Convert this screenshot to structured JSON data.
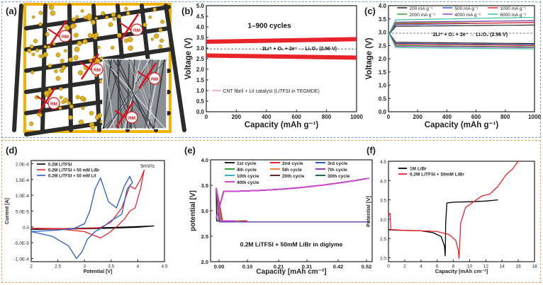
{
  "colors": {
    "top_frame": "#7f9bd0",
    "bottom_frame": "#f0a050",
    "panel_a_frame": "#f2b200"
  },
  "panel_labels": [
    "(a)",
    "(b)",
    "(c)",
    "(d)",
    "(e)",
    "(f)"
  ],
  "panel_a": {
    "inset_labels": [
      "RM",
      "RM",
      "RM",
      "RM",
      "RM",
      "RM"
    ]
  },
  "chart_data": [
    {
      "id": "b",
      "type": "line",
      "xlabel": "Capacity (mAh g⁻¹)",
      "ylabel": "Voltage (V)",
      "xlim": [
        0,
        1000
      ],
      "ylim": [
        0,
        5
      ],
      "xticks": [
        0,
        200,
        400,
        600,
        800,
        1000
      ],
      "yticks": [
        0.0,
        0.5,
        1.0,
        1.5,
        2.0,
        2.5,
        3.0,
        3.5,
        4.0,
        4.5,
        5.0
      ],
      "annotation": "1–900 cycles",
      "reaction": "2Li⁺ + O₂ + 2e⁻ → Li₂O₂ (2.96 V)",
      "equilibrium_v": 2.96,
      "legend": "CNT fibril + LiI catalyst (LiTFSI in TEGMDE)",
      "series": [
        {
          "name": "charge",
          "color": "#e8232a",
          "x": [
            0,
            1000
          ],
          "y": [
            3.3,
            3.42
          ]
        },
        {
          "name": "discharge",
          "color": "#e8232a",
          "x": [
            0,
            1000
          ],
          "y": [
            2.65,
            2.55
          ]
        }
      ]
    },
    {
      "id": "c",
      "type": "line",
      "xlabel": "Capacity (mAh g⁻¹)",
      "ylabel": "Voltage (V)",
      "xlim": [
        0,
        1000
      ],
      "ylim": [
        0,
        4
      ],
      "xticks": [
        0,
        200,
        400,
        600,
        800,
        1000
      ],
      "yticks": [
        0.0,
        0.5,
        1.0,
        1.5,
        2.0,
        2.5,
        3.0,
        3.5,
        4.0
      ],
      "reaction": "2Li⁺ + O₂ + 2e⁻ → Li₂O₂ (2.96 V)",
      "equilibrium_v": 2.96,
      "series": [
        {
          "name": "200 mA g⁻¹",
          "color": "#222222",
          "charge": 3.22,
          "discharge": 2.62
        },
        {
          "name": "500 mA g⁻¹",
          "color": "#2f5fbf",
          "charge": 3.27,
          "discharge": 2.58
        },
        {
          "name": "1000 mA g⁻¹",
          "color": "#e8232a",
          "charge": 3.31,
          "discharge": 2.55
        },
        {
          "name": "2000 mA g⁻¹",
          "color": "#30a030",
          "charge": 3.34,
          "discharge": 2.5
        },
        {
          "name": "4000 mA g⁻¹",
          "color": "#9b3fb5",
          "charge": 3.38,
          "discharge": 2.47
        },
        {
          "name": "6000 mA g⁻¹",
          "color": "#38c0a0",
          "charge": 3.46,
          "discharge": 2.42
        }
      ]
    },
    {
      "id": "d",
      "type": "line",
      "xlabel": "Potential [V]",
      "ylabel": "Current [A]",
      "xlim": [
        2.0,
        4.5
      ],
      "ylim": [
        -0.00011,
        0.00021
      ],
      "xticks": [
        2.0,
        2.5,
        3.0,
        3.5,
        4.0,
        4.5
      ],
      "ytick_labels": [
        "-1.0E-4",
        "-5.0E-5",
        "0.0",
        "5.0E-5",
        "1.0E-4",
        "1.5E-4",
        "2.0E-4"
      ],
      "yticks": [
        -0.0001,
        -5e-05,
        0,
        5e-05,
        0.0001,
        0.00015,
        0.0002
      ],
      "annotation": "5mV/s",
      "series": [
        {
          "name": "0.2M LiTFSI",
          "color": "#000000",
          "x": [
            2.0,
            2.5,
            3.0,
            3.5,
            4.0,
            4.3,
            4.0,
            3.5,
            3.0,
            2.5,
            2.0
          ],
          "y": [
            -8e-06,
            -7e-06,
            -6e-06,
            -4e-06,
            -1e-06,
            3e-06,
            1e-06,
            -2e-06,
            -4e-06,
            -6e-06,
            -8e-06
          ]
        },
        {
          "name": "0.2M LiTFSI + 50 mM LiBr",
          "color": "#e8232a",
          "x": [
            2.0,
            2.5,
            3.0,
            3.3,
            3.5,
            3.7,
            3.85,
            3.95,
            4.05,
            4.12,
            4.05,
            3.95,
            3.85,
            3.75,
            3.6,
            3.45,
            3.3,
            3.15,
            3.0,
            2.6,
            2.0
          ],
          "y": [
            -4e-06,
            -5e-06,
            -6e-06,
            -2e-06,
            1.5e-05,
            6e-05,
            0.00013,
            0.00012,
            0.00015,
            0.00018,
            0.00012,
            6e-05,
            5e-05,
            2.5e-05,
            0,
            -2e-05,
            -3.5e-05,
            -2.5e-05,
            -1.5e-05,
            -8e-06,
            -4e-06
          ]
        },
        {
          "name": "0.2M LiTFSI + 50 mM LiI",
          "color": "#2a5cc8",
          "x": [
            2.0,
            2.5,
            2.8,
            3.0,
            3.1,
            3.2,
            3.3,
            3.45,
            3.6,
            3.75,
            3.85,
            3.9,
            3.8,
            3.7,
            3.5,
            3.35,
            3.2,
            3.05,
            2.95,
            2.85,
            2.7,
            2.4,
            2.0
          ],
          "y": [
            -1.5e-05,
            -1e-05,
            -5e-06,
            1e-05,
            5e-05,
            0.00012,
            0.000155,
            8e-05,
            6e-05,
            0.00013,
            0.00016,
            0.00014,
            0.00012,
            4e-05,
            2e-05,
            0,
            -1.5e-05,
            -4e-05,
            -8e-05,
            -0.0001,
            -6e-05,
            -3e-05,
            -1.5e-05
          ]
        }
      ]
    },
    {
      "id": "e",
      "type": "line",
      "xlabel": "Capacity [mAh cm⁻²]",
      "ylabel": "potential [V]",
      "xlim": [
        -0.03,
        0.54
      ],
      "ylim": [
        2.0,
        4.0
      ],
      "xticks": [
        0.0,
        0.1,
        0.21,
        0.31,
        0.42,
        0.52
      ],
      "xtick_labels": [
        "0.00",
        "0.10",
        "0.21",
        "0.31",
        "0.42",
        "0.52"
      ],
      "yticks": [
        2.0,
        2.5,
        3.0,
        3.5,
        4.0
      ],
      "annotation": "0.2M LiTFSI + 50mM LiBr in diglyme",
      "series": [
        {
          "name": "1st cycle",
          "color": "#222222"
        },
        {
          "name": "2nd cycle",
          "color": "#e8232a"
        },
        {
          "name": "3rd cycle",
          "color": "#2a5cc8"
        },
        {
          "name": "4th cycle",
          "color": "#30a030"
        },
        {
          "name": "5th cycle",
          "color": "#ff7f2a"
        },
        {
          "name": "7th cycle",
          "color": "#8a3fc0"
        },
        {
          "name": "10th cycle",
          "color": "#3fb0d0"
        },
        {
          "name": "20th cycle",
          "color": "#7a2020"
        },
        {
          "name": "30th cycle",
          "color": "#1a6e50"
        },
        {
          "name": "40th cycle",
          "color": "#e040e0"
        }
      ]
    },
    {
      "id": "f",
      "type": "line",
      "xlabel": "Capacity [mAh cm⁻²]",
      "ylabel": "Potential [V]",
      "xlim": [
        0,
        18
      ],
      "ylim": [
        1.9,
        4.5
      ],
      "xticks": [
        0,
        2,
        4,
        6,
        8,
        10,
        12,
        14,
        16,
        18
      ],
      "yticks": [
        2.0,
        2.5,
        3.0,
        3.5,
        4.0,
        4.5
      ],
      "series": [
        {
          "name": "1M LiBr",
          "color": "#000000",
          "x": [
            0,
            0.5,
            2,
            4,
            5.5,
            6.5,
            6.9,
            7.0,
            7.05,
            7.2,
            8,
            10,
            12,
            13.5
          ],
          "y": [
            2.73,
            2.72,
            2.71,
            2.7,
            2.65,
            2.55,
            2.3,
            2.05,
            2.9,
            3.42,
            3.44,
            3.45,
            3.47,
            3.5
          ]
        },
        {
          "name": "0.2M LiTFSI + 50mM LiBr",
          "color": "#e8232a",
          "x": [
            0,
            0.2,
            0.3,
            0.5,
            2,
            4,
            6,
            7.5,
            8.3,
            8.6,
            8.7,
            8.9,
            9.5,
            10.5,
            11.5,
            12.5,
            13.5,
            14.5,
            15.3,
            16
          ],
          "y": [
            3.1,
            3.15,
            2.72,
            2.73,
            2.71,
            2.7,
            2.68,
            2.6,
            2.45,
            2.2,
            1.98,
            2.9,
            3.3,
            3.45,
            3.6,
            3.65,
            3.85,
            4.15,
            4.3,
            4.5
          ]
        }
      ]
    }
  ]
}
